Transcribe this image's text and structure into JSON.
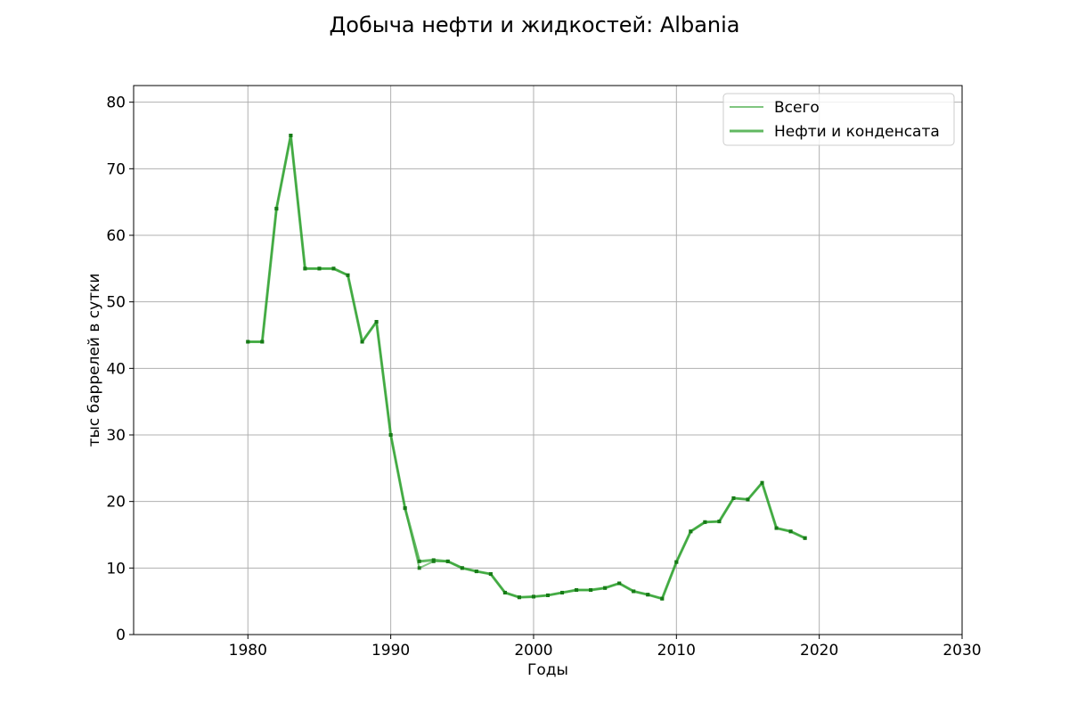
{
  "chart_data": {
    "type": "line",
    "title": "Добыча нефти и жидкостей: Albania",
    "xlabel": "Годы",
    "ylabel": "тыс баррелей в сутки",
    "xlim": [
      1972,
      2030
    ],
    "ylim": [
      0,
      82.5
    ],
    "x_ticks": [
      1980,
      1990,
      2000,
      2010,
      2020,
      2030
    ],
    "y_ticks": [
      0,
      10,
      20,
      30,
      40,
      50,
      60,
      70,
      80
    ],
    "grid": true,
    "legend_position": "top-right",
    "x": [
      1980,
      1981,
      1982,
      1983,
      1984,
      1985,
      1986,
      1987,
      1988,
      1989,
      1990,
      1991,
      1992,
      1993,
      1994,
      1995,
      1996,
      1997,
      1998,
      1999,
      2000,
      2001,
      2002,
      2003,
      2004,
      2005,
      2006,
      2007,
      2008,
      2009,
      2010,
      2011,
      2012,
      2013,
      2014,
      2015,
      2016,
      2017,
      2018,
      2019
    ],
    "series": [
      {
        "name": "Всего",
        "color": "#2ca02c",
        "style": "thin",
        "values": [
          44,
          44,
          64,
          75,
          55,
          55,
          55,
          54,
          44,
          47,
          30,
          19,
          10,
          11,
          11,
          10,
          9.5,
          9.1,
          6.3,
          5.6,
          5.7,
          5.9,
          6.3,
          6.7,
          6.7,
          7.0,
          7.7,
          6.5,
          6.0,
          5.4,
          10.9,
          15.5,
          16.9,
          17.0,
          20.5,
          20.3,
          22.8,
          16.0,
          15.5,
          14.5
        ]
      },
      {
        "name": "Нефти и конденсата",
        "color": "#2ca02c",
        "style": "thick",
        "values": [
          44,
          44,
          64,
          75,
          55,
          55,
          55,
          54,
          44,
          47,
          30,
          19,
          11,
          11.2,
          11,
          10,
          9.5,
          9.1,
          6.3,
          5.6,
          5.7,
          5.9,
          6.3,
          6.7,
          6.7,
          7.0,
          7.7,
          6.5,
          6.0,
          5.4,
          10.9,
          15.5,
          16.9,
          17.0,
          20.5,
          20.3,
          22.8,
          16.0,
          15.5,
          14.5
        ]
      }
    ]
  }
}
